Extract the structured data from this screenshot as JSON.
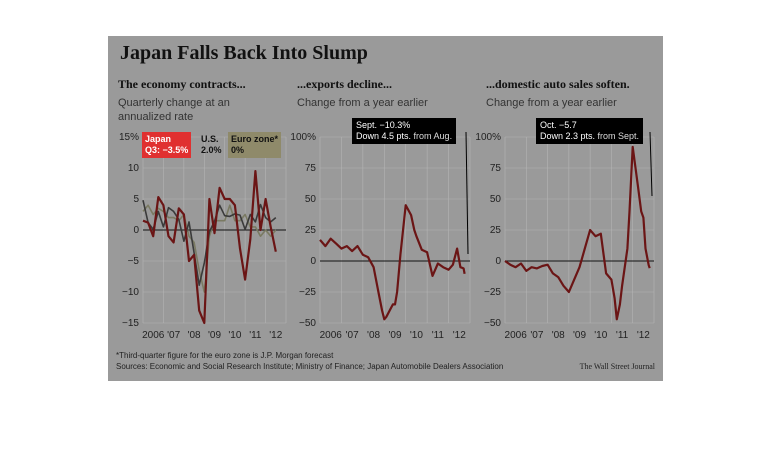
{
  "figure": {
    "title": "Japan Falls Back Into Slump",
    "footnote": "*Third-quarter figure for the euro zone is J.P. Morgan forecast",
    "sources": "Sources: Economic and Social Research Institute; Ministry of Finance; Japan Automobile Dealers Association",
    "credit": "The Wall Street Journal"
  },
  "colors": {
    "japan": "#6b1515",
    "us": "#3a3a3a",
    "euro": "#7a7a62",
    "background": "#9a9a9a",
    "highlight_japan": "#e03030"
  },
  "panels": [
    {
      "title": "The economy contracts...",
      "subtitle_line1": "Quarterly change at an",
      "subtitle_line2": "annualized rate"
    },
    {
      "title": "...exports decline...",
      "subtitle_line1": "Change from a year earlier",
      "subtitle_line2": ""
    },
    {
      "title": "...domestic auto sales soften.",
      "subtitle_line1": "Change from a year earlier",
      "subtitle_line2": ""
    }
  ],
  "legend": {
    "japan_name": "Japan",
    "japan_value": "Q3: −3.5%",
    "us_name": "U.S.",
    "us_value": "2.0%",
    "euro_name": "Euro zone*",
    "euro_value": "0%"
  },
  "callouts": {
    "exports_line1": "Sept. −10.3%",
    "exports_line2a": "Down 4.5 pts.",
    "exports_line2b": "from Aug.",
    "autos_line1": "Oct. −5.7",
    "autos_line2a": "Down 2.3 pts.",
    "autos_line2b": "from Sept."
  },
  "chart_data": [
    {
      "type": "line",
      "title": "The economy contracts...",
      "subtitle": "Quarterly change at an annualized rate",
      "ylim": [
        -15,
        15
      ],
      "yticks": [
        -15,
        -10,
        -5,
        0,
        5,
        10,
        15
      ],
      "ytick_labels": [
        "−15",
        "−10",
        "−5",
        "0",
        "5",
        "10",
        "15%"
      ],
      "xlim": [
        2006,
        2013
      ],
      "xtick_labels": [
        "2006",
        "'07",
        "'08",
        "'09",
        "'10",
        "'11",
        "'12"
      ],
      "grid": true,
      "series": [
        {
          "name": "Japan",
          "x": [
            2006.0,
            2006.25,
            2006.5,
            2006.75,
            2007.0,
            2007.25,
            2007.5,
            2007.75,
            2008.0,
            2008.25,
            2008.5,
            2008.75,
            2009.0,
            2009.25,
            2009.5,
            2009.75,
            2010.0,
            2010.25,
            2010.5,
            2010.75,
            2011.0,
            2011.25,
            2011.5,
            2011.75,
            2012.0,
            2012.25,
            2012.5
          ],
          "values": [
            1.5,
            1.2,
            -1.0,
            5.3,
            4.0,
            -1.0,
            -2.0,
            3.5,
            2.5,
            -5.0,
            -4.0,
            -13.0,
            -15.0,
            5.0,
            -0.5,
            6.8,
            5.0,
            5.0,
            4.0,
            -3.0,
            -8.0,
            -1.5,
            9.5,
            0.0,
            5.0,
            0.5,
            -3.5
          ]
        },
        {
          "name": "U.S.",
          "x": [
            2006.0,
            2006.25,
            2006.5,
            2006.75,
            2007.0,
            2007.25,
            2007.5,
            2007.75,
            2008.0,
            2008.25,
            2008.5,
            2008.75,
            2009.0,
            2009.25,
            2009.5,
            2009.75,
            2010.0,
            2010.25,
            2010.5,
            2010.75,
            2011.0,
            2011.25,
            2011.5,
            2011.75,
            2012.0,
            2012.25,
            2012.5
          ],
          "values": [
            4.8,
            1.2,
            0.1,
            3.0,
            0.5,
            3.6,
            3.0,
            1.7,
            -1.8,
            1.3,
            -3.7,
            -8.9,
            -5.3,
            -0.3,
            1.4,
            4.0,
            2.3,
            2.2,
            2.6,
            2.4,
            0.1,
            2.5,
            1.3,
            4.1,
            2.0,
            1.3,
            2.0
          ]
        },
        {
          "name": "Euro zone*",
          "x": [
            2006.0,
            2006.25,
            2006.5,
            2006.75,
            2007.0,
            2007.25,
            2007.5,
            2007.75,
            2008.0,
            2008.25,
            2008.5,
            2008.75,
            2009.0,
            2009.25,
            2009.5,
            2009.75,
            2010.0,
            2010.25,
            2010.5,
            2010.75,
            2011.0,
            2011.25,
            2011.5,
            2011.75,
            2012.0,
            2012.25,
            2012.5
          ],
          "values": [
            3.0,
            4.0,
            2.5,
            3.5,
            3.0,
            2.0,
            2.0,
            1.5,
            2.5,
            -1.0,
            -2.0,
            -6.5,
            -10.0,
            -1.0,
            1.5,
            1.5,
            1.5,
            4.0,
            1.5,
            1.5,
            2.5,
            0.5,
            0.5,
            -1.0,
            0.0,
            -1.0,
            0.0
          ]
        }
      ]
    },
    {
      "type": "line",
      "title": "...exports decline...",
      "subtitle": "Change from a year earlier",
      "ylim": [
        -50,
        100
      ],
      "yticks": [
        -50,
        -25,
        0,
        25,
        50,
        75,
        100
      ],
      "ytick_labels": [
        "−50",
        "−25",
        "0",
        "25",
        "50",
        "75",
        "100%"
      ],
      "xlim": [
        2006,
        2013
      ],
      "xtick_labels": [
        "2006",
        "'07",
        "'08",
        "'09",
        "'10",
        "'11",
        "'12"
      ],
      "grid": true,
      "series": [
        {
          "name": "Exports",
          "x": [
            2006.0,
            2006.25,
            2006.5,
            2006.75,
            2007.0,
            2007.25,
            2007.5,
            2007.75,
            2008.0,
            2008.25,
            2008.5,
            2008.75,
            2008.9,
            2009.0,
            2009.1,
            2009.25,
            2009.4,
            2009.5,
            2009.6,
            2009.75,
            2010.0,
            2010.25,
            2010.4,
            2010.5,
            2010.75,
            2011.0,
            2011.25,
            2011.5,
            2011.75,
            2012.0,
            2012.2,
            2012.4,
            2012.55,
            2012.7,
            2012.75
          ],
          "values": [
            17,
            12,
            18,
            14,
            10,
            12,
            8,
            12,
            5,
            3,
            -5,
            -27,
            -40,
            -47,
            -45,
            -40,
            -35,
            -35,
            -25,
            5,
            45,
            37,
            25,
            20,
            9,
            7,
            -12,
            -2,
            -5,
            -7,
            -3,
            10,
            -5,
            -6,
            -10.3
          ]
        }
      ]
    },
    {
      "type": "line",
      "title": "...domestic auto sales soften.",
      "subtitle": "Change from a year earlier",
      "ylim": [
        -50,
        100
      ],
      "yticks": [
        -50,
        -25,
        0,
        25,
        50,
        75,
        100
      ],
      "ytick_labels": [
        "−50",
        "−25",
        "0",
        "25",
        "50",
        "75",
        "100%"
      ],
      "xlim": [
        2006,
        2013
      ],
      "xtick_labels": [
        "2006",
        "'07",
        "'08",
        "'09",
        "'10",
        "'11",
        "'12"
      ],
      "grid": true,
      "series": [
        {
          "name": "Domestic auto sales",
          "x": [
            2006.0,
            2006.25,
            2006.5,
            2006.75,
            2007.0,
            2007.25,
            2007.5,
            2007.75,
            2008.0,
            2008.25,
            2008.5,
            2008.75,
            2009.0,
            2009.25,
            2009.5,
            2009.75,
            2010.0,
            2010.25,
            2010.5,
            2010.75,
            2011.0,
            2011.15,
            2011.25,
            2011.4,
            2011.5,
            2011.75,
            2011.85,
            2012.0,
            2012.25,
            2012.4,
            2012.5,
            2012.6,
            2012.75,
            2012.8
          ],
          "values": [
            0,
            -3,
            -5,
            -2,
            -8,
            -5,
            -6,
            -4,
            -3,
            -10,
            -13,
            -20,
            -25,
            -15,
            -5,
            10,
            25,
            20,
            22,
            -10,
            -15,
            -30,
            -47,
            -35,
            -20,
            10,
            40,
            92,
            60,
            40,
            35,
            10,
            -3.4,
            -5.7
          ]
        }
      ]
    }
  ]
}
